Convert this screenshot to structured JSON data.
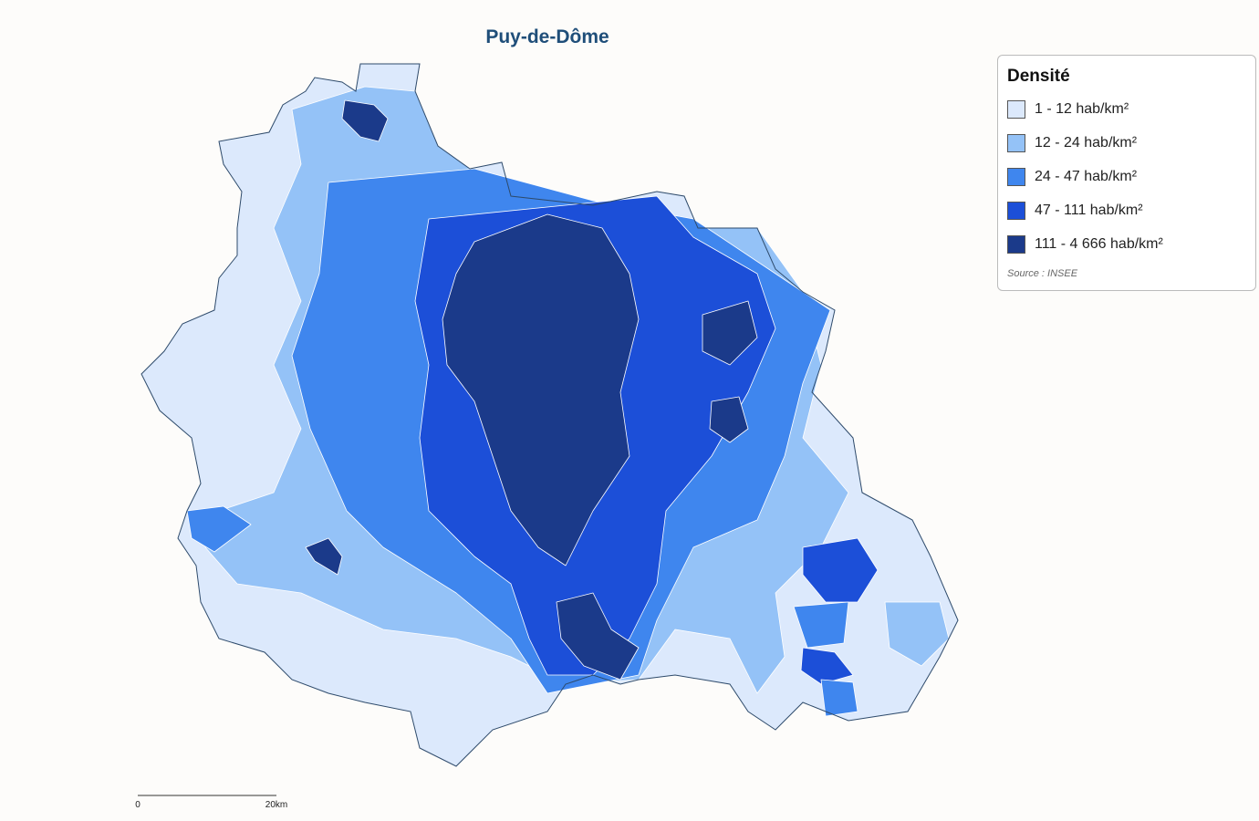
{
  "title": "Puy-de-Dôme",
  "legend": {
    "title": "Densité",
    "items": [
      {
        "label": "1 - 12 hab/km²",
        "color": "#dce9fc"
      },
      {
        "label": "12 - 24 hab/km²",
        "color": "#94c2f7"
      },
      {
        "label": "24 - 47 hab/km²",
        "color": "#3f86ee"
      },
      {
        "label": "47 - 111 hab/km²",
        "color": "#1c4fd8"
      },
      {
        "label": "111 - 4 666 hab/km²",
        "color": "#1b3a8a"
      }
    ],
    "source": "Source : INSEE"
  },
  "scale": {
    "start": "0",
    "end": "20km"
  }
}
